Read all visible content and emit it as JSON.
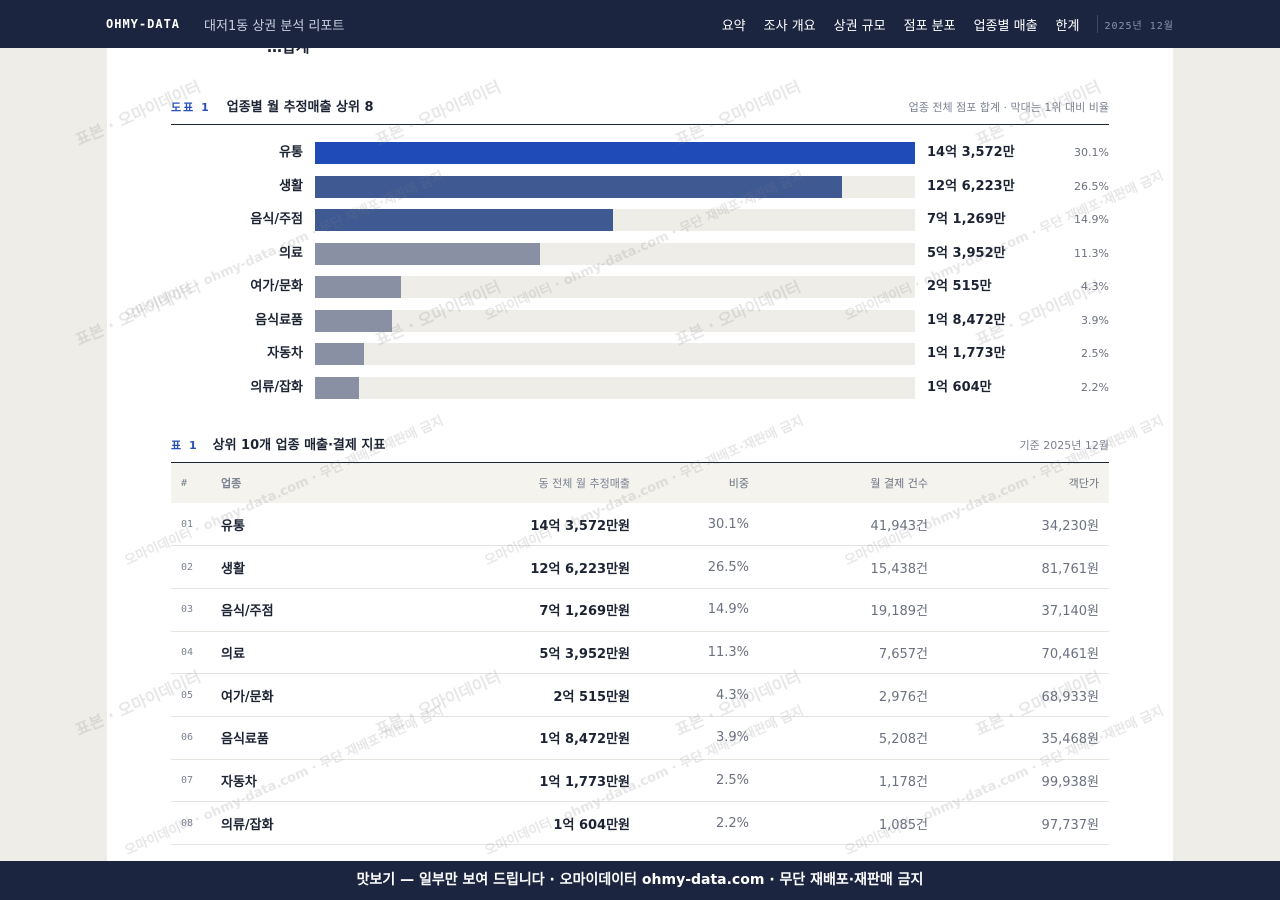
{
  "header": {
    "brand": "OHMY-DATA",
    "doc_title": "대저1동 상권 분석 리포트",
    "nav": [
      "요약",
      "조사 개요",
      "상권 규모",
      "점포 분포",
      "업종별 매출",
      "한계"
    ],
    "date": "2025년 12월"
  },
  "prev_text": "…합계",
  "chart_section": {
    "tag": "도표 1",
    "title": "업종별 월 추정매출 상위 8",
    "note": "업종 전체 점포 합계 · 막대는 1위 대비 비율"
  },
  "chart_data": {
    "type": "bar",
    "categories": [
      "유통",
      "생활",
      "음식/주점",
      "의료",
      "여가/문화",
      "음식료품",
      "자동차",
      "의류/잡화"
    ],
    "values": [
      143572,
      126223,
      71269,
      53952,
      20515,
      18472,
      11773,
      10604
    ],
    "value_labels": [
      "14억 3,572만",
      "12억 6,223만",
      "7억 1,269만",
      "5억 3,952만",
      "2억 515만",
      "1억 8,472만",
      "1억 1,773만",
      "1억 604만"
    ],
    "shares": [
      "30.1%",
      "26.5%",
      "14.9%",
      "11.3%",
      "4.3%",
      "3.9%",
      "2.5%",
      "2.2%"
    ],
    "colors": [
      "#1e4bb8",
      "#3f5a93",
      "#3f5a93",
      "#8a90a3",
      "#8a90a3",
      "#8a90a3",
      "#8a90a3",
      "#8a90a3"
    ]
  },
  "table_section": {
    "tag": "표 1",
    "title": "상위 10개 업종 매출·결제 지표",
    "note": "기준 2025년 12월"
  },
  "table": {
    "headers": [
      "#",
      "업종",
      "동 전체 월 추정매출",
      "비중",
      "월 결제 건수",
      "객단가"
    ],
    "rows": [
      [
        "01",
        "유통",
        "14억 3,572만원",
        "30.1%",
        "41,943건",
        "34,230원"
      ],
      [
        "02",
        "생활",
        "12억 6,223만원",
        "26.5%",
        "15,438건",
        "81,761원"
      ],
      [
        "03",
        "음식/주점",
        "7억 1,269만원",
        "14.9%",
        "19,189건",
        "37,140원"
      ],
      [
        "04",
        "의료",
        "5억 3,952만원",
        "11.3%",
        "7,657건",
        "70,461원"
      ],
      [
        "05",
        "여가/문화",
        "2억 515만원",
        "4.3%",
        "2,976건",
        "68,933원"
      ],
      [
        "06",
        "음식료품",
        "1억 8,472만원",
        "3.9%",
        "5,208건",
        "35,468원"
      ],
      [
        "07",
        "자동차",
        "1억 1,773만원",
        "2.5%",
        "1,178건",
        "99,938원"
      ],
      [
        "08",
        "의류/잡화",
        "1억 604만원",
        "2.2%",
        "1,085건",
        "97,737원"
      ]
    ]
  },
  "footer": "맛보기 — 일부만 보여 드립니다 · 오마이데이터 ohmy-data.com · 무단 재배포·재판매 금지",
  "watermarks": [
    "표본 · 오마이데이터",
    "오마이데이터 · ohmy-data.com · 무단 재배포·재판매 금지"
  ]
}
